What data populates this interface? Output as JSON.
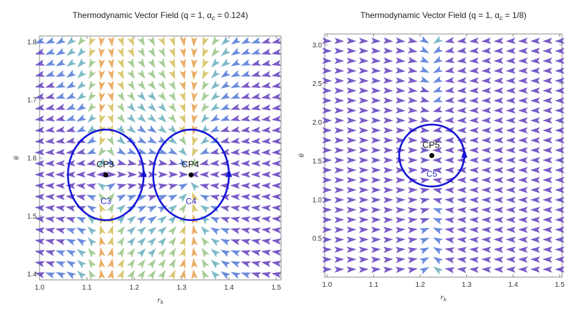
{
  "chart_data": [
    {
      "type": "vector-field",
      "title": "Thermodynamic Vector Field  (q = 1,  α",
      "title_sub": "c",
      "title_tail": " = 0.124)",
      "xlabel": "r",
      "xlabel_sub": "h",
      "ylabel": "θ",
      "xlim": [
        1.0,
        1.51
      ],
      "ylim": [
        1.39,
        1.81
      ],
      "xticks": [
        "1.0",
        "1.1",
        "1.2",
        "1.3",
        "1.4",
        "1.5"
      ],
      "xtick_values": [
        1.0,
        1.1,
        1.2,
        1.3,
        1.4,
        1.5
      ],
      "yticks": [
        "1.4",
        "1.5",
        "1.6",
        "1.7",
        "1.8"
      ],
      "ytick_values": [
        1.4,
        1.5,
        1.6,
        1.7,
        1.8
      ],
      "field": {
        "nx": 24,
        "ny": 22,
        "x_range": [
          1.0,
          1.5
        ],
        "y_range": [
          1.4,
          1.8
        ],
        "roots_x": [
          1.14,
          1.32
        ],
        "center_y": 1.5708
      },
      "critical_points": [
        {
          "name": "CP3",
          "x": 1.14,
          "y": 1.5708
        },
        {
          "name": "CP4",
          "x": 1.32,
          "y": 1.5708
        }
      ],
      "contours": [
        {
          "name": "C3",
          "cx": 1.14,
          "cy": 1.5708,
          "rx": 0.08,
          "ry": 0.078
        },
        {
          "name": "C4",
          "cx": 1.32,
          "cy": 1.5708,
          "rx": 0.08,
          "ry": 0.078
        }
      ],
      "grid": false
    },
    {
      "type": "vector-field",
      "title": "Thermodynamic Vector Field  (q = 1,  α",
      "title_sub": "c",
      "title_tail": " = 1/8)",
      "xlabel": "r",
      "xlabel_sub": "h",
      "ylabel": "θ",
      "xlim": [
        0.995,
        1.505
      ],
      "ylim": [
        0.0,
        3.1416
      ],
      "xticks": [
        "1.0",
        "1.1",
        "1.2",
        "1.3",
        "1.4",
        "1.5"
      ],
      "xtick_values": [
        1.0,
        1.1,
        1.2,
        1.3,
        1.4,
        1.5
      ],
      "yticks": [
        "0.5",
        "1.0",
        "1.5",
        "2.0",
        "2.5",
        "3.0"
      ],
      "ytick_values": [
        0.5,
        1.0,
        1.5,
        2.0,
        2.5,
        3.0
      ],
      "field": {
        "nx": 20,
        "ny": 24,
        "x_range": [
          1.0,
          1.5
        ],
        "y_range": [
          0.1,
          3.05
        ],
        "roots_x": [
          1.225
        ],
        "center_y": 1.5708
      },
      "critical_points": [
        {
          "name": "CP5",
          "x": 1.225,
          "y": 1.5708
        }
      ],
      "contours": [
        {
          "name": "C5",
          "cx": 1.225,
          "cy": 1.5708,
          "rx": 0.07,
          "ry": 0.4
        }
      ],
      "grid": false
    }
  ],
  "colors": {
    "red": "#e45b57",
    "orange": "#e8a455",
    "yellow": "#d6c160",
    "green": "#9cc88a",
    "teal": "#6fb3c0",
    "blue": "#5b7fd9",
    "purple": "#6a49c2",
    "contour": "#1414d8",
    "point": "#000000"
  }
}
